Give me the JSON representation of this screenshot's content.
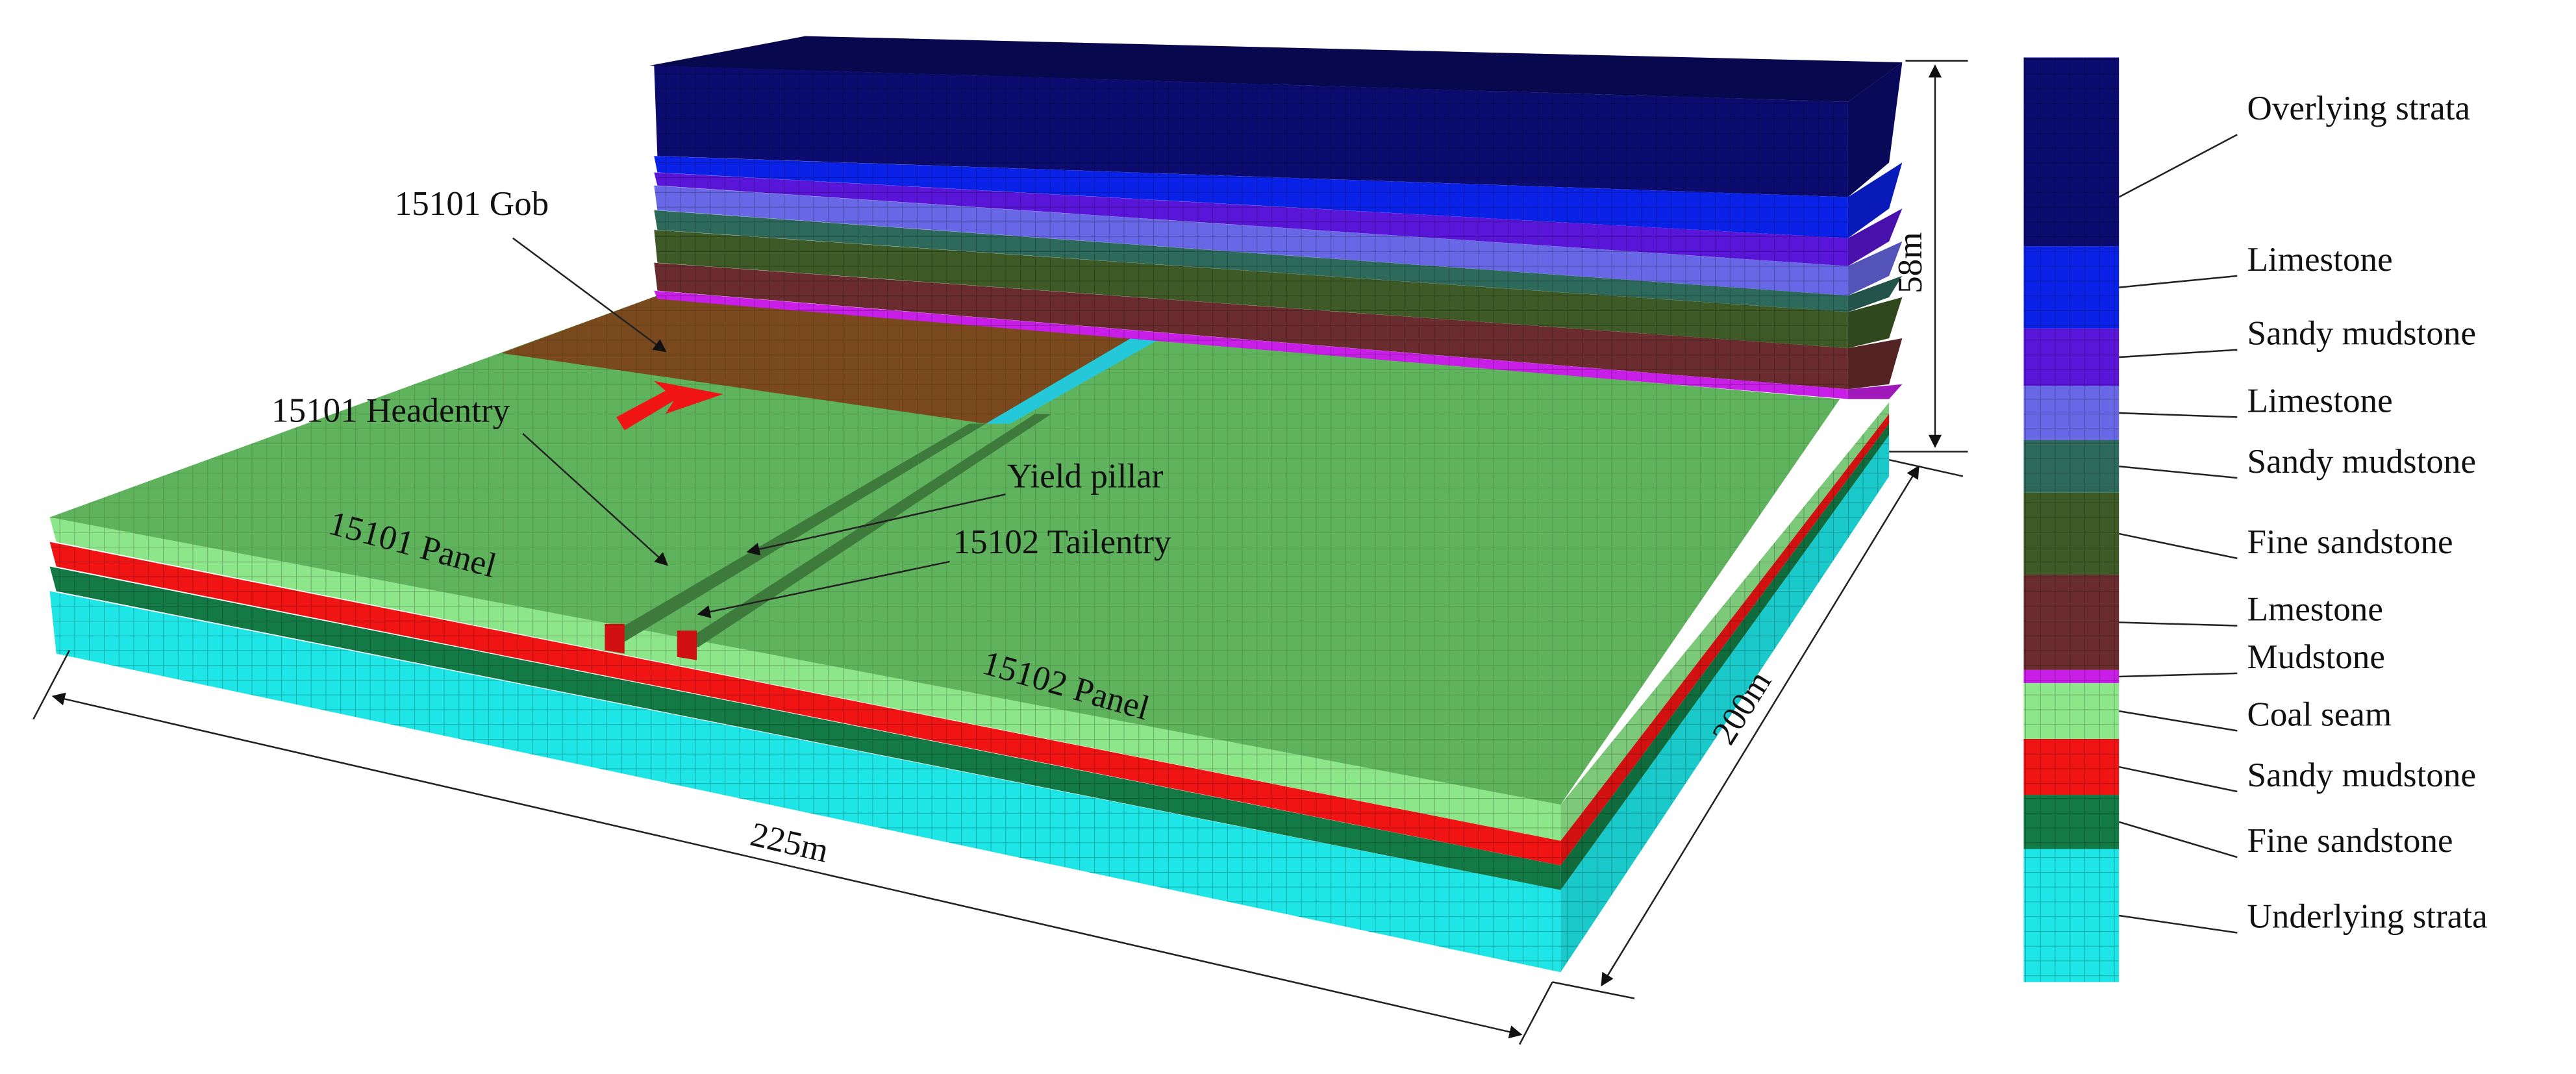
{
  "annotations": [
    "15101 Gob",
    "15101 Headentry",
    "15101 Panel",
    "Yield pillar",
    "15102 Tailentry",
    "15102 Panel"
  ],
  "dimensions": {
    "length": "225m",
    "width": "200m",
    "height": "58m"
  },
  "legend": [
    {
      "label": "Overlying strata",
      "color": "#0c0c70"
    },
    {
      "label": "Limestone",
      "color": "#0a22e8"
    },
    {
      "label": "Sandy mudstone",
      "color": "#5a16d8"
    },
    {
      "label": "Limestone",
      "color": "#6868e6"
    },
    {
      "label": "Sandy mudstone",
      "color": "#2e6a5c"
    },
    {
      "label": "Fine sandstone",
      "color": "#3e5a26"
    },
    {
      "label": "Lmestone",
      "color": "#6a2c2e"
    },
    {
      "label": "Mudstone",
      "color": "#c81ee8"
    },
    {
      "label": "Coal seam",
      "color": "#8ee68a"
    },
    {
      "label": "Sandy mudstone",
      "color": "#f01414"
    },
    {
      "label": "Fine sandstone",
      "color": "#137a46"
    },
    {
      "label": "Underlying strata",
      "color": "#1ee6e6"
    }
  ]
}
